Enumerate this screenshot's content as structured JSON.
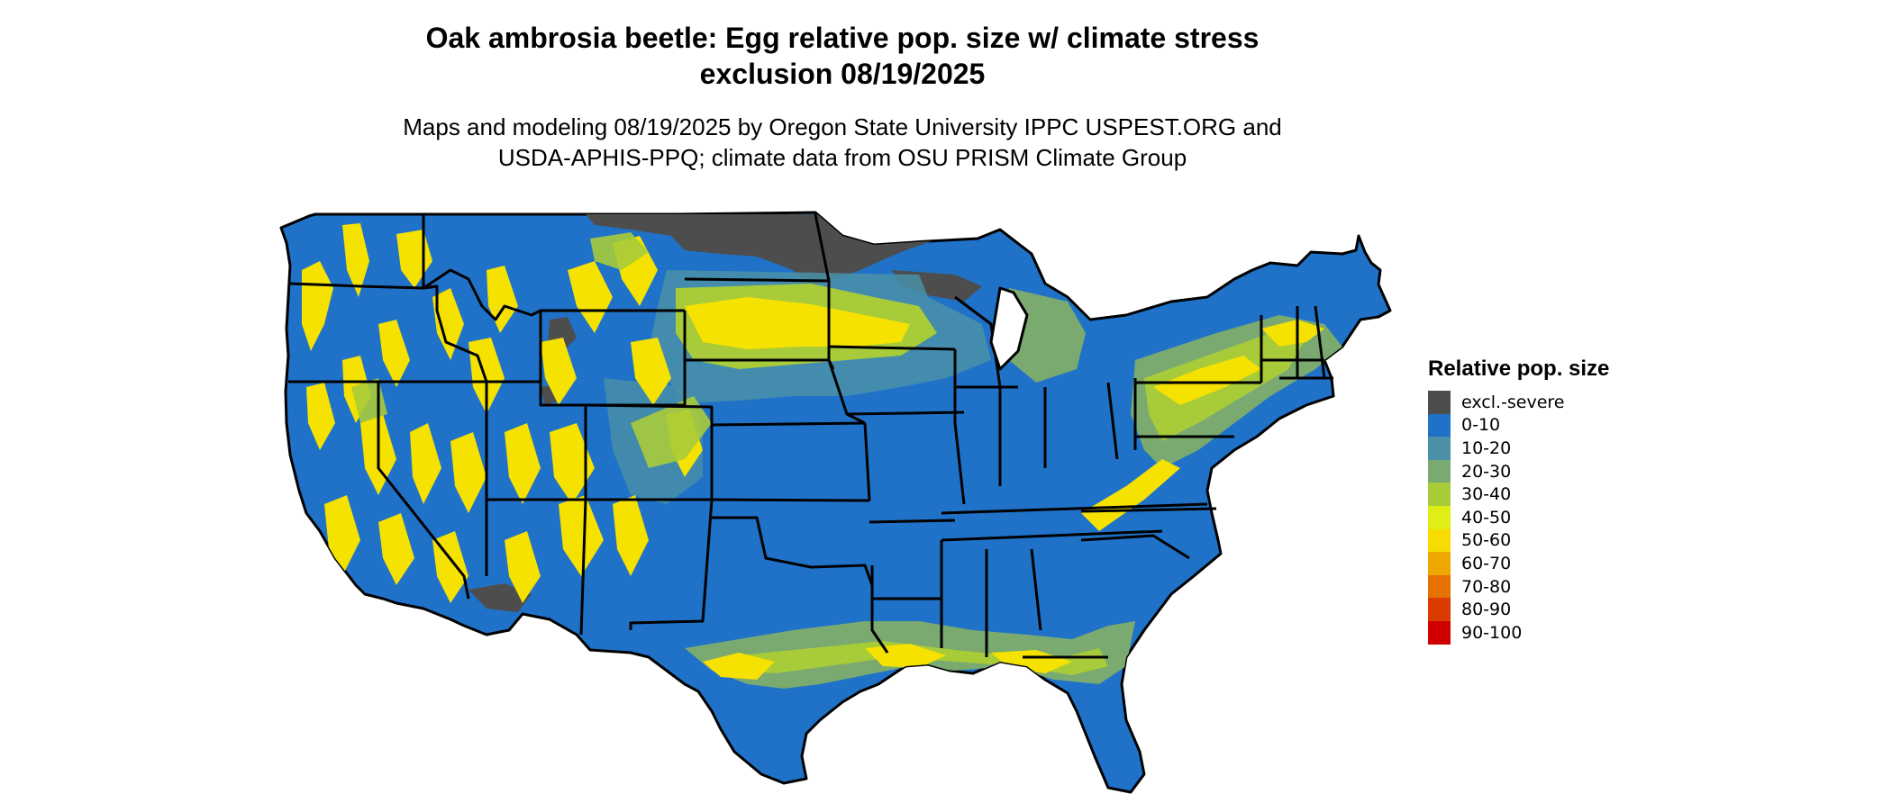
{
  "header": {
    "title_line1": "Oak ambrosia beetle: Egg relative pop. size w/ climate stress",
    "title_line2": "exclusion 08/19/2025",
    "subtitle_line1": "Maps and modeling 08/19/2025 by Oregon State University IPPC USPEST.ORG and",
    "subtitle_line2": "USDA-APHIS-PPQ; climate data from OSU PRISM Climate Group"
  },
  "legend": {
    "title": "Relative pop. size",
    "items": [
      {
        "label": "excl.-severe",
        "color": "#4d4d4d"
      },
      {
        "label": "0-10",
        "color": "#1f72c8"
      },
      {
        "label": "10-20",
        "color": "#4a90a8"
      },
      {
        "label": "20-30",
        "color": "#7aaa70"
      },
      {
        "label": "30-40",
        "color": "#a8cb3a"
      },
      {
        "label": "40-50",
        "color": "#dfee17"
      },
      {
        "label": "50-60",
        "color": "#f6dc00"
      },
      {
        "label": "60-70",
        "color": "#efa800"
      },
      {
        "label": "70-80",
        "color": "#e57200"
      },
      {
        "label": "80-90",
        "color": "#db3a00"
      },
      {
        "label": "90-100",
        "color": "#d10000"
      }
    ]
  },
  "map": {
    "region": "contiguous-united-states",
    "background_class": "0-10",
    "colors": {
      "base": "#1f72c8",
      "excluded": "#4d4d4d",
      "yellow": "#f6e200",
      "lime": "#a8cb3a",
      "olive": "#7aaa70",
      "teal": "#4a90a8",
      "border": "#000000"
    }
  }
}
